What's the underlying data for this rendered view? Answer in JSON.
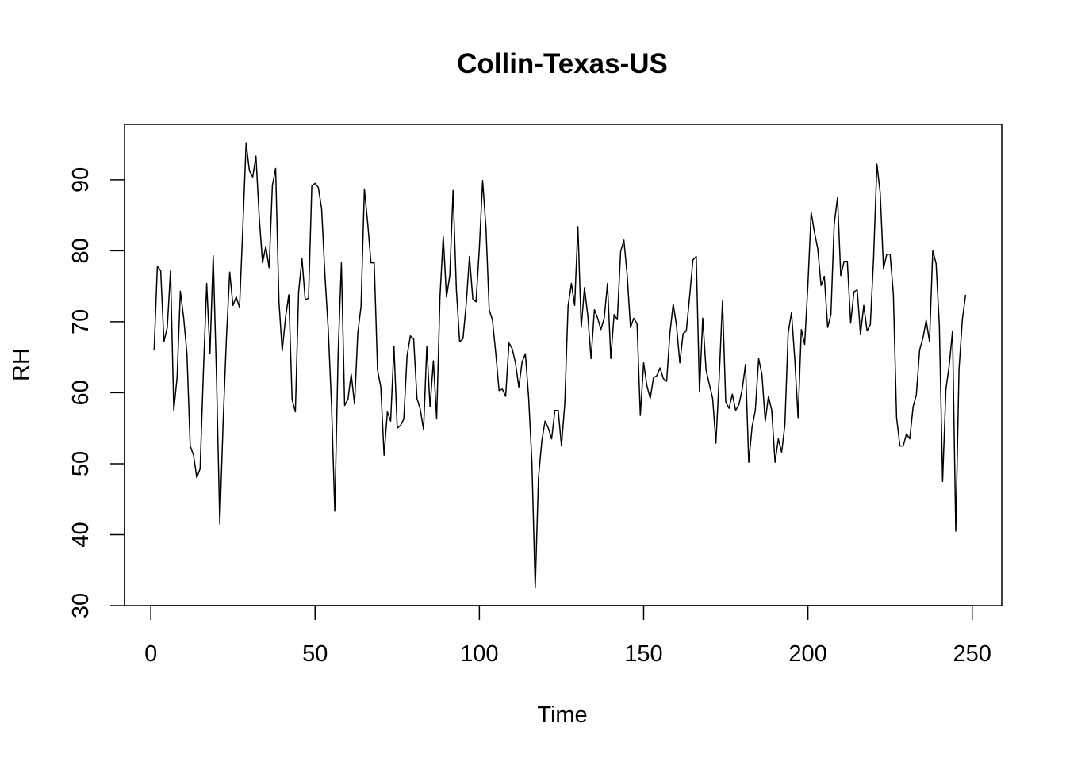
{
  "chart_data": {
    "type": "line",
    "title": "Collin-Texas-US",
    "xlabel": "Time",
    "ylabel": "RH",
    "xlim": [
      -8,
      259
    ],
    "ylim": [
      30,
      97.8
    ],
    "xticks": [
      0,
      50,
      100,
      150,
      200,
      250
    ],
    "yticks": [
      30,
      40,
      50,
      60,
      70,
      80,
      90
    ],
    "grid": false,
    "color": "#000000",
    "series": [
      {
        "x_start": 1,
        "values": [
          66,
          77.8,
          77.2,
          67.2,
          69.2,
          77.2,
          57.5,
          62.2,
          74.3,
          70.5,
          65.5,
          52.5,
          51.2,
          48,
          49.3,
          62.8,
          75.4,
          65.5,
          79.3,
          62.1,
          41.5,
          55.8,
          67.5,
          77,
          72.3,
          73.5,
          72,
          83.2,
          95.2,
          91.3,
          90.4,
          93.3,
          84.8,
          78.3,
          80.6,
          77.6,
          89.2,
          91.6,
          72.8,
          65.9,
          70.6,
          73.8,
          59,
          57.3,
          74.2,
          78.9,
          73.1,
          73.3,
          89.1,
          89.5,
          88.9,
          85.9,
          76.5,
          69,
          58.2,
          43.3,
          65.5,
          78.3,
          58.2,
          59.1,
          62.6,
          58.4,
          68.4,
          72.2,
          88.7,
          84,
          78.3,
          78.3,
          63.2,
          60.8,
          51.2,
          57.3,
          56,
          66.5,
          55,
          55.4,
          56.3,
          65.2,
          68,
          67.6,
          59.2,
          57.7,
          54.8,
          66.5,
          58,
          64.5,
          56.3,
          73.5,
          82,
          73.5,
          76.5,
          88.5,
          74.5,
          67.2,
          67.6,
          72.5,
          79.2,
          73.2,
          72.8,
          80.5,
          89.9,
          83.2,
          71.7,
          70.2,
          65.5,
          60.3,
          60.5,
          59.5,
          67,
          66.2,
          64.2,
          60.8,
          64.3,
          65.5,
          59.3,
          50.3,
          32.5,
          48,
          53.2,
          56,
          55,
          53.5,
          57.5,
          57.5,
          52.5,
          58.5,
          72.2,
          75.4,
          72.3,
          83.4,
          69.2,
          74.8,
          70.8,
          64.8,
          71.7,
          70.5,
          68.9,
          70.5,
          75.4,
          64.8,
          71,
          70.3,
          79.9,
          81.5,
          76.5,
          69.2,
          70.5,
          69.7,
          56.8,
          64.2,
          61,
          59.2,
          62.1,
          62.4,
          63.5,
          62,
          61.6,
          68.4,
          72.5,
          69.5,
          64.2,
          68.3,
          68.7,
          73.6,
          78.7,
          79.2,
          60.1,
          70.5,
          63.2,
          61.2,
          59.2,
          52.9,
          62.3,
          72.9,
          58.7,
          57.8,
          59.8,
          57.5,
          58.3,
          60.5,
          64,
          50.2,
          55.2,
          57.5,
          64.8,
          62.6,
          56,
          59.5,
          57.5,
          50.2,
          53.5,
          51.6,
          55.5,
          68.4,
          71.3,
          64.8,
          56.5,
          68.9,
          66.8,
          75.2,
          85.4,
          82.6,
          80.3,
          75.1,
          76.4,
          69.2,
          71,
          83.7,
          87.5,
          76.5,
          78.5,
          78.5,
          69.8,
          74.2,
          74.5,
          68.2,
          72.3,
          68.7,
          69.6,
          79,
          92.2,
          88.2,
          77.5,
          79.5,
          79.5,
          74,
          56.5,
          52.5,
          52.5,
          54.2,
          53.5,
          58,
          59.7,
          66,
          67.7,
          70.2,
          67.2,
          80,
          78.2,
          69.5,
          47.5,
          60.5,
          63.8,
          68.7,
          40.5,
          63.3,
          70.3,
          73.8
        ]
      }
    ]
  }
}
